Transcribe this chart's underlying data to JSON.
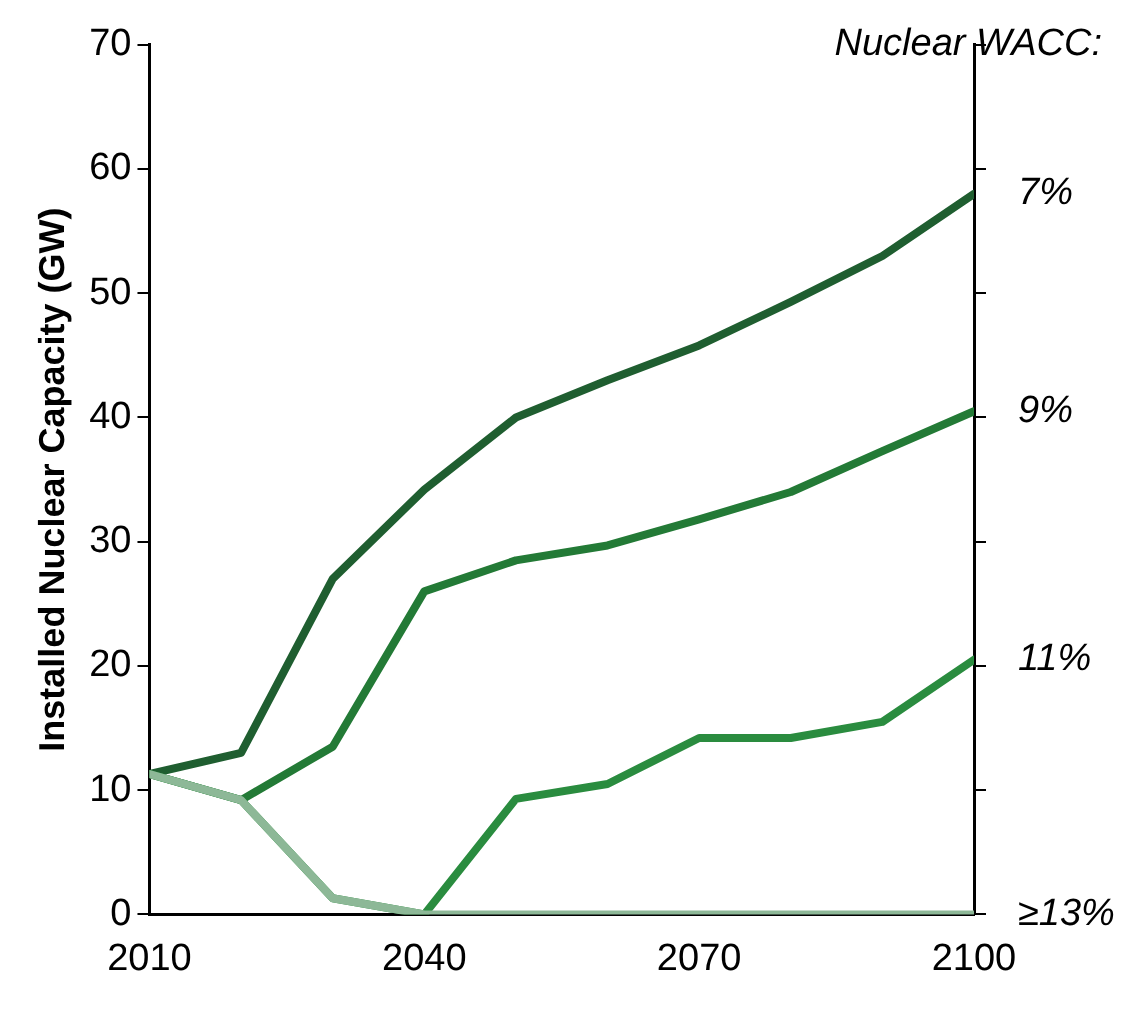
{
  "chart_data": {
    "type": "line",
    "ylabel": "Installed Nuclear Capacity (GW)",
    "legend_title": "Nuclear WACC:",
    "x": [
      2010,
      2020,
      2030,
      2040,
      2050,
      2060,
      2070,
      2080,
      2090,
      2100
    ],
    "series": [
      {
        "name": "7%",
        "color": "#1f5e30",
        "values": [
          11.3,
          13,
          27,
          34.2,
          40,
          43,
          45.8,
          49.3,
          53,
          58
        ]
      },
      {
        "name": "9%",
        "color": "#237a36",
        "values": [
          11.3,
          9.2,
          13.5,
          26,
          28.5,
          29.7,
          31.8,
          34,
          37.3,
          40.5
        ]
      },
      {
        "name": "11%",
        "color": "#2a8c3f",
        "values": [
          11.3,
          9.2,
          1.3,
          0,
          9.3,
          10.5,
          14.2,
          14.2,
          15.5,
          20.5
        ]
      },
      {
        "name": "≥13%",
        "color": "#8db897",
        "values": [
          11.3,
          9.2,
          1.3,
          0,
          0,
          0,
          0,
          0,
          0,
          0
        ]
      }
    ],
    "xlim": [
      2010,
      2100
    ],
    "xticks": [
      2010,
      2040,
      2070,
      2100
    ],
    "ylim": [
      0,
      70
    ],
    "yticks": [
      0,
      10,
      20,
      30,
      40,
      50,
      60,
      70
    ],
    "grid": false,
    "legend": "right",
    "marker": "none",
    "line_style": "solid"
  }
}
